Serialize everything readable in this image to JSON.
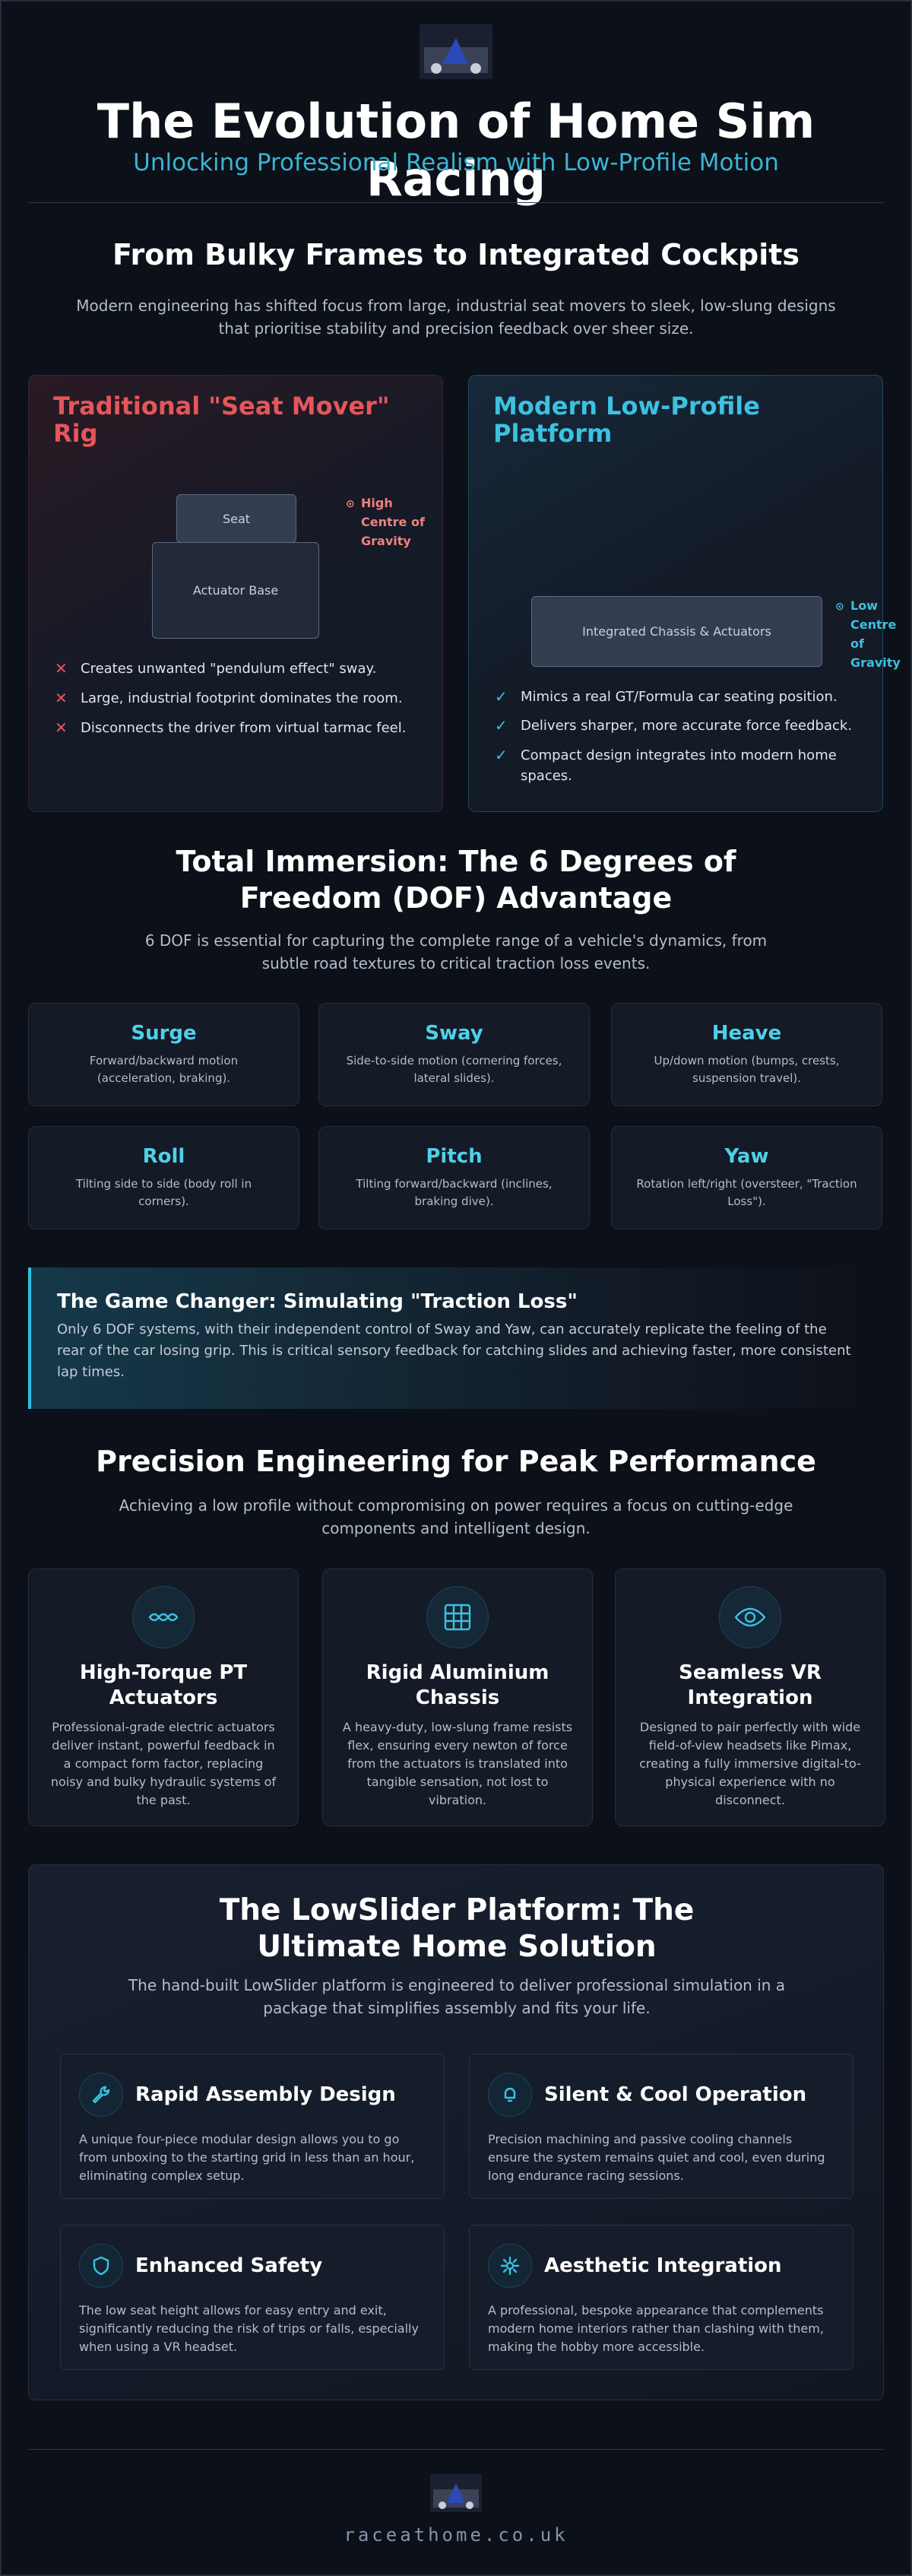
{
  "header": {
    "title": "The Evolution of Home Sim Racing",
    "subtitle": "Unlocking Professional Realism with Low-Profile Motion"
  },
  "section1": {
    "title": "From Bulky Frames to Integrated Cockpits",
    "intro": "Modern engineering has shifted focus from large, industrial seat movers to sleek, low-slung designs that prioritise stability and precision feedback over sheer size.",
    "traditional": {
      "title": "Traditional \"Seat Mover\" Rig",
      "seat_label": "Seat",
      "base_label": "Actuator Base",
      "cog_label": "High Centre of Gravity",
      "points": [
        "Creates unwanted \"pendulum effect\" sway.",
        "Large, industrial footprint dominates the room.",
        "Disconnects the driver from virtual tarmac feel."
      ]
    },
    "modern": {
      "title": "Modern Low-Profile Platform",
      "chassis_label": "Integrated Chassis & Actuators",
      "cog_label": "Low Centre of Gravity",
      "points": [
        "Mimics a real GT/Formula car seating position.",
        "Delivers sharper, more accurate force feedback.",
        "Compact design integrates into modern home spaces."
      ]
    }
  },
  "section2": {
    "title": "Total Immersion: The 6 Degrees of Freedom (DOF) Advantage",
    "intro": "6 DOF is essential for capturing the complete range of a vehicle's dynamics, from subtle road textures to critical traction loss events.",
    "dof": [
      {
        "name": "Surge",
        "desc": "Forward/backward motion (acceleration, braking)."
      },
      {
        "name": "Sway",
        "desc": "Side-to-side motion (cornering forces, lateral slides)."
      },
      {
        "name": "Heave",
        "desc": "Up/down motion (bumps, crests, suspension travel)."
      },
      {
        "name": "Roll",
        "desc": "Tilting side to side (body roll in corners)."
      },
      {
        "name": "Pitch",
        "desc": "Tilting forward/backward (inclines, braking dive)."
      },
      {
        "name": "Yaw",
        "desc": "Rotation left/right (oversteer, \"Traction Loss\")."
      }
    ],
    "callout": {
      "title": "The Game Changer: Simulating \"Traction Loss\"",
      "text": "Only 6 DOF systems, with their independent control of Sway and Yaw, can accurately replicate the feeling of the rear of the car losing grip. This is critical sensory feedback for catching slides and achieving faster, more consistent lap times."
    }
  },
  "section3": {
    "title": "Precision Engineering for Peak Performance",
    "intro": "Achieving a low profile without compromising on power requires a focus on cutting-edge components and intelligent design.",
    "features": [
      {
        "title": "High-Torque PT Actuators",
        "text": "Professional-grade electric actuators deliver instant, powerful feedback in a compact form factor, replacing noisy and bulky hydraulic systems of the past."
      },
      {
        "title": "Rigid Aluminium Chassis",
        "text": "A heavy-duty, low-slung frame resists flex, ensuring every newton of force from the actuators is translated into tangible sensation, not lost to vibration."
      },
      {
        "title": "Seamless VR Integration",
        "text": "Designed to pair perfectly with wide field-of-view headsets like Pimax, creating a fully immersive digital-to-physical experience with no disconnect."
      }
    ]
  },
  "section4": {
    "title": "The LowSlider Platform: The Ultimate Home Solution",
    "intro": "The hand-built LowSlider platform is engineered to deliver professional simulation in a package that simplifies assembly and fits your life.",
    "cards": [
      {
        "title": "Rapid Assembly Design",
        "text": "A unique four-piece modular design allows you to go from unboxing to the starting grid in less than an hour, eliminating complex setup."
      },
      {
        "title": "Silent & Cool Operation",
        "text": "Precision machining and passive cooling channels ensure the system remains quiet and cool, even during long endurance racing sessions."
      },
      {
        "title": "Enhanced Safety",
        "text": "The low seat height allows for easy entry and exit, significantly reducing the risk of trips or falls, especially when using a VR headset."
      },
      {
        "title": "Aesthetic Integration",
        "text": "A professional, bespoke appearance that complements modern home interiors rather than clashing with them, making the hobby more accessible."
      }
    ]
  },
  "footer": {
    "site": "raceathome.co.uk"
  }
}
